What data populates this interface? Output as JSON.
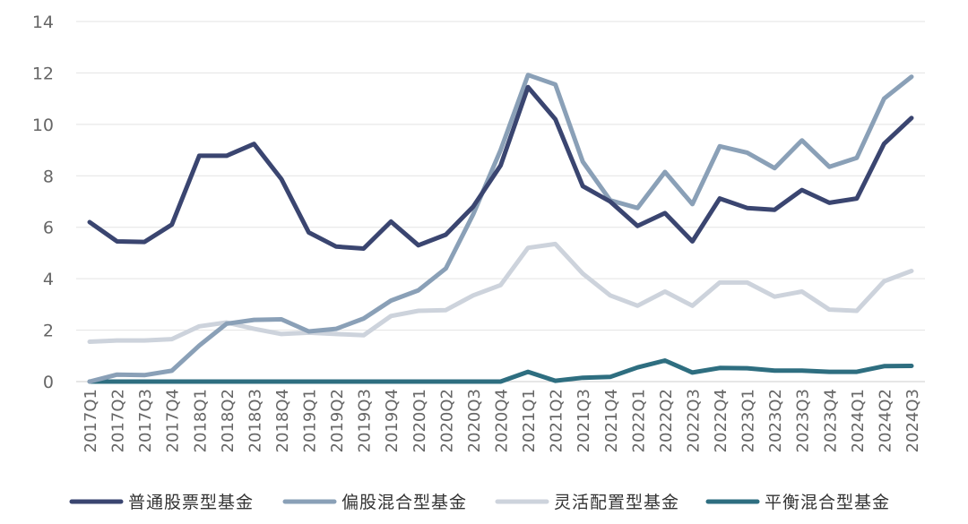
{
  "chart_data": {
    "type": "line",
    "title": "",
    "xlabel": "",
    "ylabel": "",
    "ylim": [
      0,
      14
    ],
    "yticks": [
      0,
      2,
      4,
      6,
      8,
      10,
      12,
      14
    ],
    "grid": true,
    "legend_position": "bottom",
    "categories": [
      "2017Q1",
      "2017Q2",
      "2017Q3",
      "2017Q4",
      "2018Q1",
      "2018Q2",
      "2018Q3",
      "2018Q4",
      "2019Q1",
      "2019Q2",
      "2019Q3",
      "2019Q4",
      "2020Q1",
      "2020Q2",
      "2020Q3",
      "2020Q4",
      "2021Q1",
      "2021Q2",
      "2021Q3",
      "2021Q4",
      "2022Q1",
      "2022Q2",
      "2022Q3",
      "2022Q4",
      "2023Q1",
      "2023Q2",
      "2023Q3",
      "2023Q4",
      "2024Q1",
      "2024Q2",
      "2024Q3"
    ],
    "series": [
      {
        "name": "普通股票型基金",
        "color": "#3a4570",
        "values": [
          6.2,
          5.45,
          5.43,
          6.1,
          8.78,
          8.78,
          9.24,
          7.87,
          5.8,
          5.25,
          5.17,
          6.22,
          5.3,
          5.71,
          6.8,
          8.4,
          11.45,
          10.2,
          7.6,
          7.0,
          6.05,
          6.55,
          5.45,
          7.12,
          6.75,
          6.68,
          7.45,
          6.95,
          7.12,
          9.25,
          10.25
        ]
      },
      {
        "name": "偏股混合型基金",
        "color": "#8aa0b7",
        "values": [
          0.0,
          0.27,
          0.25,
          0.42,
          1.4,
          2.25,
          2.4,
          2.42,
          1.95,
          2.05,
          2.45,
          3.15,
          3.55,
          4.4,
          6.5,
          9.0,
          11.92,
          11.55,
          8.55,
          7.05,
          6.75,
          8.15,
          6.9,
          9.15,
          8.9,
          8.3,
          9.38,
          8.35,
          8.7,
          11.0,
          11.85
        ]
      },
      {
        "name": "灵活配置型基金",
        "color": "#cdd3dc",
        "values": [
          1.55,
          1.6,
          1.6,
          1.65,
          2.15,
          2.3,
          2.05,
          1.85,
          1.9,
          1.85,
          1.8,
          2.55,
          2.75,
          2.78,
          3.35,
          3.75,
          5.2,
          5.35,
          4.2,
          3.35,
          2.95,
          3.5,
          2.95,
          3.85,
          3.85,
          3.3,
          3.5,
          2.8,
          2.75,
          3.9,
          4.3
        ]
      },
      {
        "name": "平衡混合型基金",
        "color": "#2e6e80",
        "values": [
          0.0,
          0.0,
          0.0,
          0.0,
          0.0,
          0.0,
          0.0,
          0.0,
          0.0,
          0.0,
          0.0,
          0.0,
          0.0,
          0.0,
          0.0,
          0.0,
          0.38,
          0.03,
          0.15,
          0.18,
          0.55,
          0.82,
          0.35,
          0.53,
          0.52,
          0.43,
          0.43,
          0.38,
          0.38,
          0.6,
          0.61
        ]
      }
    ]
  },
  "style": {
    "grid_color": "#e3e3e3",
    "axis_color": "#cccccc",
    "tick_text_color": "#666666"
  }
}
